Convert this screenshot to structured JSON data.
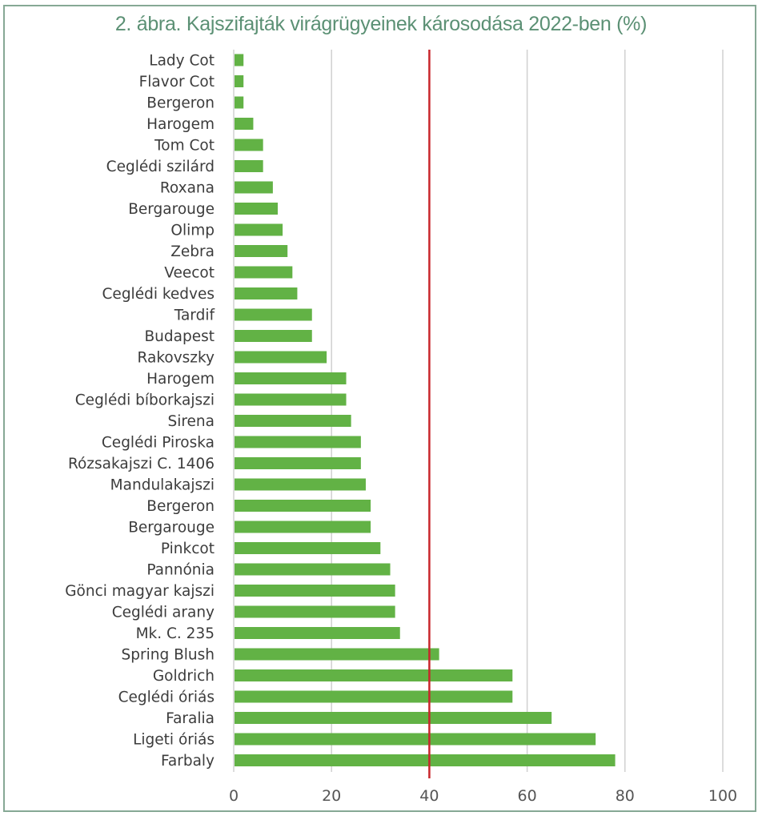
{
  "chart_data": {
    "type": "bar",
    "orientation": "horizontal",
    "title": "2. ábra. Kajszifajták virágrügyeinek károsodása 2022-ben (%)",
    "xlabel": "",
    "ylabel": "",
    "xlim": [
      0,
      100
    ],
    "xticks": [
      0,
      20,
      40,
      60,
      80,
      100
    ],
    "grid": true,
    "reference_line": {
      "value": 40,
      "color": "#c8262c"
    },
    "bar_color": "#62b245",
    "gridline_color": "#d0d0d0",
    "categories": [
      "Lady Cot",
      "Flavor Cot",
      "Bergeron",
      "Harogem",
      "Tom Cot",
      "Ceglédi szilárd",
      "Roxana",
      "Bergarouge",
      "Olimp",
      "Zebra",
      "Veecot",
      "Ceglédi kedves",
      "Tardif",
      "Budapest",
      "Rakovszky",
      "Harogem",
      "Ceglédi bíborkajszi",
      "Sirena",
      "Ceglédi Piroska",
      "Rózsakajszi C. 1406",
      "Mandulakajszi",
      "Bergeron",
      "Bergarouge",
      "Pinkcot",
      "Pannónia",
      "Gönci magyar kajszi",
      "Ceglédi arany",
      "Mk. C. 235",
      "Spring Blush",
      "Goldrich",
      "Ceglédi óriás",
      "Faralia",
      "Ligeti óriás",
      "Farbaly"
    ],
    "values": [
      2,
      2,
      2,
      4,
      6,
      6,
      8,
      9,
      10,
      11,
      12,
      13,
      16,
      16,
      19,
      23,
      23,
      24,
      26,
      26,
      27,
      28,
      28,
      30,
      32,
      33,
      33,
      34,
      42,
      57,
      57,
      65,
      74,
      78
    ]
  }
}
